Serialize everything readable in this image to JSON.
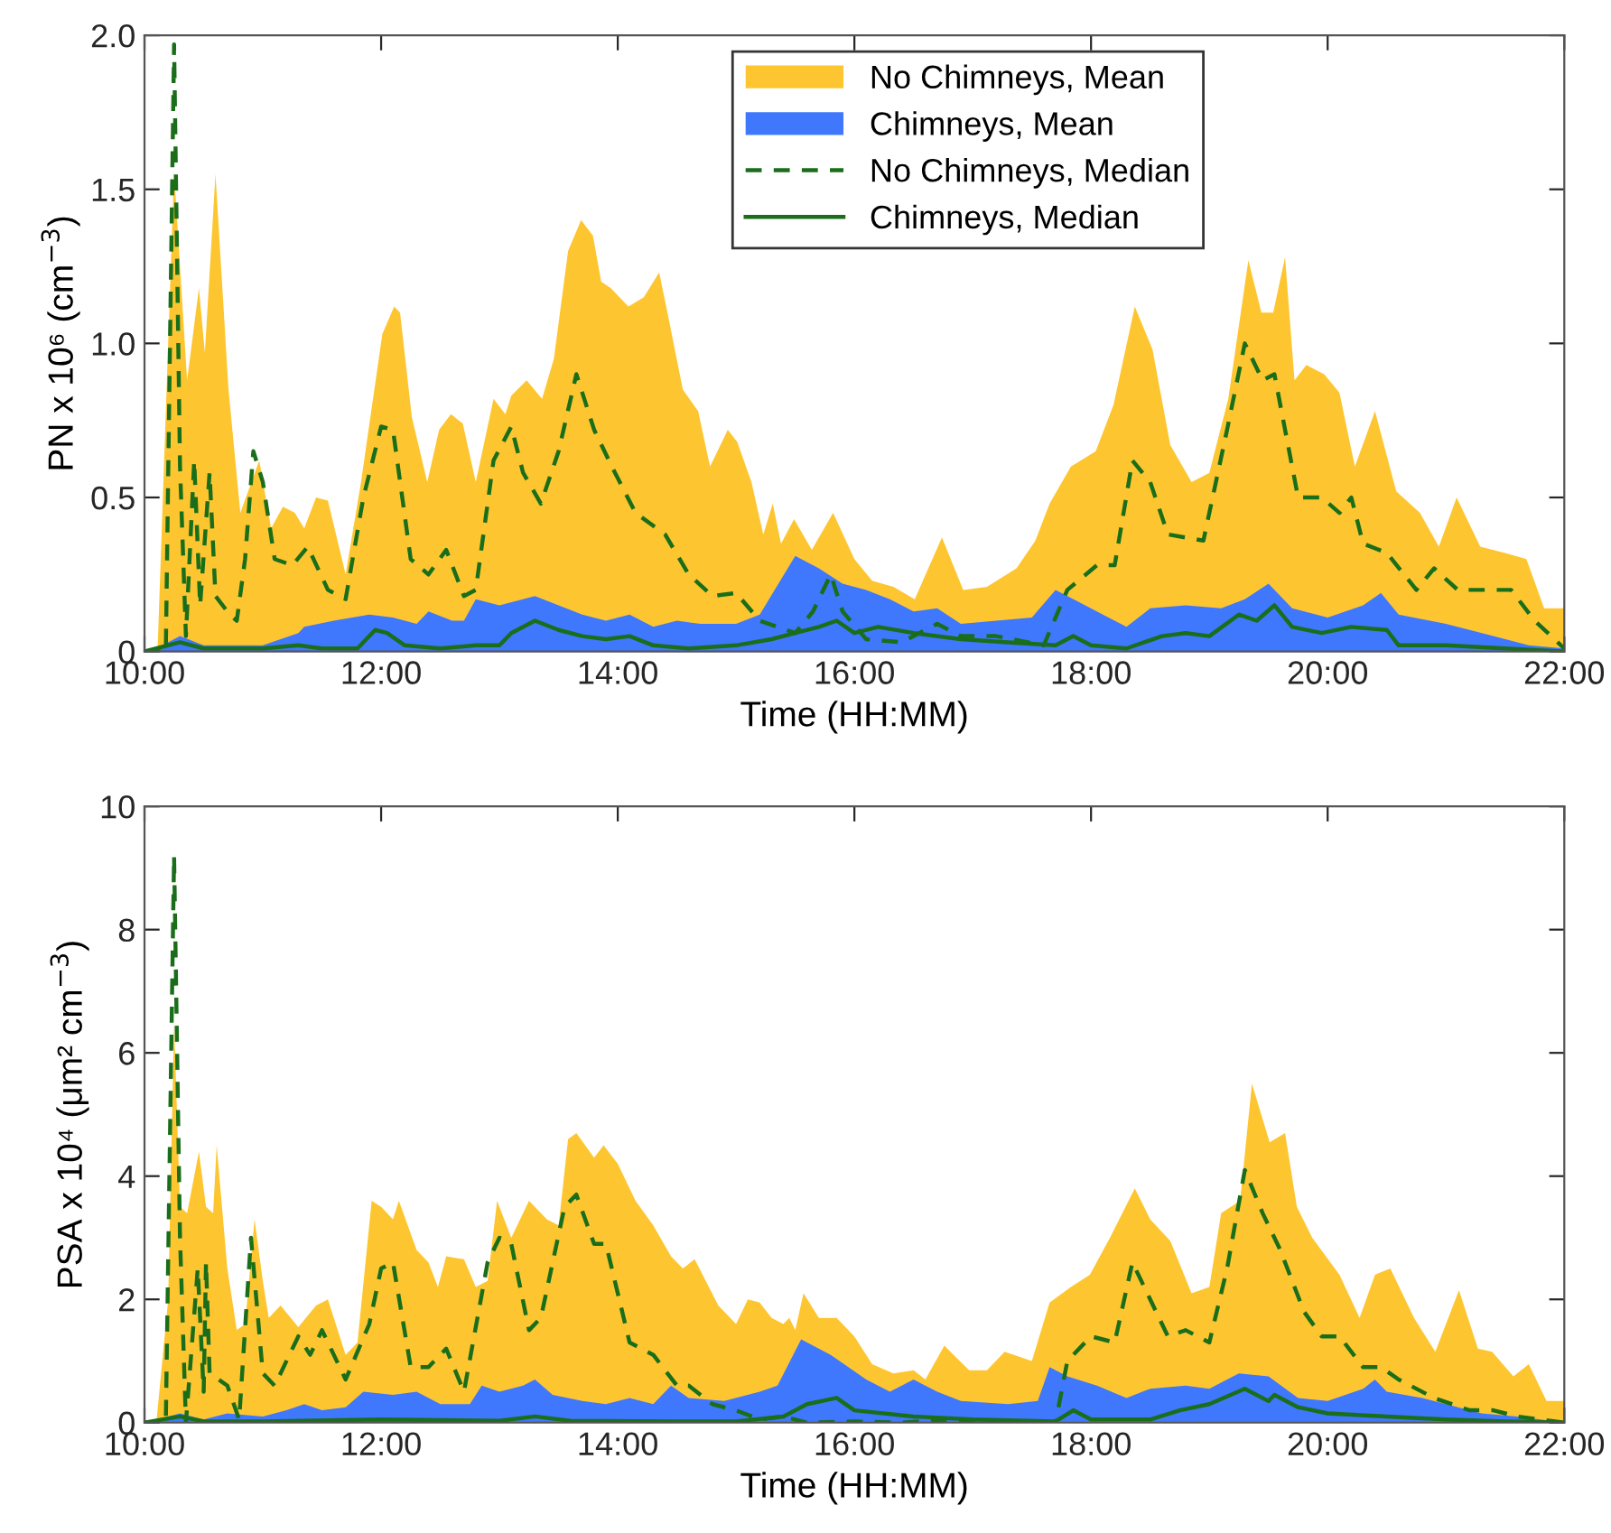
{
  "chart_data": [
    {
      "type": "area",
      "xlabel": "Time (HH:MM)",
      "ylabel": "PN x 10⁶ (cm$^{−3}$)",
      "xlim": [
        10,
        22
      ],
      "xticks": [
        {
          "value": 10,
          "label": "10:00"
        },
        {
          "value": 12,
          "label": "12:00"
        },
        {
          "value": 14,
          "label": "14:00"
        },
        {
          "value": 16,
          "label": "16:00"
        },
        {
          "value": 18,
          "label": "18:00"
        },
        {
          "value": 20,
          "label": "20:00"
        },
        {
          "value": 22,
          "label": "22:00"
        }
      ],
      "ylim": [
        0,
        2
      ],
      "yticks": [
        0,
        0.5,
        {
          "value": 1,
          "label": "1.0"
        },
        1.5,
        {
          "value": 2,
          "label": "2.0"
        }
      ],
      "grid": false,
      "legend": "top",
      "series": [
        {
          "name": "No Chimneys, Mean",
          "color": "#fdc631",
          "x": [
            10.0,
            10.11,
            10.2,
            10.25,
            10.36,
            10.46,
            10.51,
            10.6,
            10.71,
            10.81,
            10.97,
            11.07,
            11.17,
            11.27,
            11.35,
            11.45,
            11.55,
            11.7,
            11.83,
            12.01,
            12.11,
            12.16,
            12.26,
            12.39,
            12.49,
            12.59,
            12.69,
            12.8,
            12.95,
            13.05,
            13.1,
            13.23,
            13.36,
            13.46,
            13.58,
            13.69,
            13.79,
            13.86,
            13.94,
            14.09,
            14.22,
            14.35,
            14.42,
            14.55,
            14.68,
            14.78,
            14.93,
            15.01,
            15.13,
            15.23,
            15.31,
            15.38,
            15.49,
            15.64,
            15.82,
            16.0,
            16.15,
            16.33,
            16.51,
            16.74,
            16.92,
            17.12,
            17.37,
            17.53,
            17.65,
            17.83,
            18.04,
            18.19,
            18.37,
            18.52,
            18.67,
            18.85,
            19.0,
            19.16,
            19.33,
            19.44,
            19.54,
            19.64,
            19.72,
            19.82,
            19.97,
            20.1,
            20.23,
            20.4,
            20.58,
            20.78,
            20.94,
            21.09,
            21.29,
            21.5,
            21.68,
            21.83,
            22.0
          ],
          "values": [
            0,
            0,
            1.0,
            1.56,
            0.88,
            1.18,
            0.97,
            1.55,
            0.85,
            0.45,
            0.62,
            0.4,
            0.47,
            0.45,
            0.4,
            0.5,
            0.49,
            0.25,
            0.55,
            1.03,
            1.12,
            1.1,
            0.76,
            0.55,
            0.72,
            0.77,
            0.74,
            0.55,
            0.82,
            0.77,
            0.83,
            0.88,
            0.82,
            0.95,
            1.3,
            1.4,
            1.35,
            1.2,
            1.18,
            1.12,
            1.15,
            1.23,
            1.1,
            0.85,
            0.78,
            0.6,
            0.72,
            0.68,
            0.55,
            0.38,
            0.48,
            0.35,
            0.43,
            0.33,
            0.45,
            0.3,
            0.23,
            0.21,
            0.17,
            0.37,
            0.2,
            0.21,
            0.27,
            0.36,
            0.48,
            0.6,
            0.65,
            0.8,
            1.12,
            0.98,
            0.67,
            0.55,
            0.58,
            0.82,
            1.27,
            1.1,
            1.1,
            1.28,
            0.88,
            0.93,
            0.9,
            0.84,
            0.6,
            0.78,
            0.52,
            0.45,
            0.34,
            0.5,
            0.34,
            0.32,
            0.3,
            0.14,
            0.14
          ]
        },
        {
          "name": "Chimneys, Mean",
          "color": "#3f77fd",
          "x": [
            10.0,
            10.1,
            10.3,
            10.5,
            11.0,
            11.3,
            11.35,
            11.6,
            11.9,
            12.1,
            12.3,
            12.4,
            12.6,
            12.7,
            12.8,
            13.0,
            13.3,
            13.5,
            13.7,
            13.9,
            14.1,
            14.3,
            14.5,
            14.7,
            15.0,
            15.2,
            15.5,
            15.7,
            15.9,
            16.1,
            16.3,
            16.5,
            16.7,
            16.9,
            17.2,
            17.5,
            17.7,
            17.9,
            18.1,
            18.3,
            18.5,
            18.8,
            19.1,
            19.3,
            19.5,
            19.7,
            20.0,
            20.3,
            20.45,
            20.6,
            21.0,
            21.4,
            21.7,
            22.0
          ],
          "values": [
            0,
            0.01,
            0.05,
            0.02,
            0.02,
            0.06,
            0.08,
            0.1,
            0.12,
            0.11,
            0.09,
            0.13,
            0.1,
            0.1,
            0.17,
            0.15,
            0.18,
            0.15,
            0.12,
            0.1,
            0.12,
            0.08,
            0.1,
            0.09,
            0.09,
            0.12,
            0.31,
            0.27,
            0.22,
            0.2,
            0.17,
            0.13,
            0.14,
            0.09,
            0.1,
            0.11,
            0.2,
            0.16,
            0.12,
            0.08,
            0.14,
            0.15,
            0.14,
            0.17,
            0.22,
            0.14,
            0.11,
            0.15,
            0.19,
            0.12,
            0.09,
            0.05,
            0.02,
            0.01
          ]
        },
        {
          "name": "No Chimneys, Median",
          "type": "line",
          "line_style": "dashed",
          "color": "#1a6e1a",
          "x": [
            10.0,
            10.18,
            10.25,
            10.3,
            10.35,
            10.42,
            10.47,
            10.55,
            10.6,
            10.72,
            10.78,
            10.85,
            10.92,
            11.0,
            11.1,
            11.25,
            11.38,
            11.55,
            11.7,
            11.85,
            12.0,
            12.1,
            12.25,
            12.4,
            12.55,
            12.7,
            12.8,
            12.95,
            13.1,
            13.2,
            13.35,
            13.5,
            13.65,
            13.8,
            13.95,
            14.15,
            14.4,
            14.6,
            14.8,
            15.0,
            15.2,
            15.5,
            15.65,
            15.8,
            15.9,
            16.1,
            16.4,
            16.7,
            16.9,
            17.2,
            17.6,
            17.8,
            18.05,
            18.2,
            18.35,
            18.5,
            18.65,
            18.95,
            19.15,
            19.3,
            19.45,
            19.55,
            19.75,
            19.95,
            20.1,
            20.2,
            20.3,
            20.5,
            20.75,
            20.9,
            21.1,
            21.35,
            21.55,
            21.75,
            22.0
          ],
          "values": [
            0,
            0,
            1.97,
            0.6,
            0.05,
            0.62,
            0.15,
            0.58,
            0.18,
            0.12,
            0.1,
            0.3,
            0.65,
            0.55,
            0.3,
            0.28,
            0.34,
            0.2,
            0.17,
            0.5,
            0.73,
            0.72,
            0.3,
            0.25,
            0.33,
            0.18,
            0.2,
            0.62,
            0.73,
            0.58,
            0.48,
            0.65,
            0.9,
            0.72,
            0.6,
            0.45,
            0.38,
            0.25,
            0.18,
            0.19,
            0.1,
            0.06,
            0.13,
            0.25,
            0.13,
            0.04,
            0.03,
            0.09,
            0.05,
            0.05,
            0.02,
            0.2,
            0.28,
            0.28,
            0.62,
            0.55,
            0.38,
            0.36,
            0.72,
            1.0,
            0.88,
            0.9,
            0.5,
            0.5,
            0.45,
            0.5,
            0.35,
            0.32,
            0.2,
            0.27,
            0.2,
            0.2,
            0.2,
            0.1,
            0.01
          ]
        },
        {
          "name": "Chimneys, Median",
          "type": "line",
          "line_style": "solid",
          "color": "#1a6e1a",
          "x": [
            10.0,
            10.3,
            10.5,
            11.0,
            11.3,
            11.5,
            11.8,
            11.95,
            12.05,
            12.2,
            12.5,
            12.8,
            13.0,
            13.1,
            13.3,
            13.5,
            13.7,
            13.9,
            14.1,
            14.3,
            14.6,
            15.0,
            15.3,
            15.5,
            15.7,
            15.85,
            16.0,
            16.2,
            16.5,
            16.9,
            17.3,
            17.7,
            17.85,
            18.0,
            18.3,
            18.6,
            18.8,
            19.0,
            19.25,
            19.4,
            19.55,
            19.7,
            19.95,
            20.2,
            20.5,
            20.6,
            21.0,
            21.5,
            22.0
          ],
          "values": [
            0,
            0.03,
            0.01,
            0.01,
            0.02,
            0.01,
            0.01,
            0.07,
            0.06,
            0.02,
            0.01,
            0.02,
            0.02,
            0.06,
            0.1,
            0.07,
            0.05,
            0.04,
            0.05,
            0.02,
            0.01,
            0.02,
            0.04,
            0.06,
            0.08,
            0.1,
            0.06,
            0.08,
            0.06,
            0.04,
            0.03,
            0.02,
            0.05,
            0.02,
            0.01,
            0.05,
            0.06,
            0.05,
            0.12,
            0.1,
            0.15,
            0.08,
            0.06,
            0.08,
            0.07,
            0.02,
            0.02,
            0.01,
            0
          ]
        }
      ]
    },
    {
      "type": "area",
      "xlabel": "Time (HH:MM)",
      "ylabel": "PSA x 10⁴ (μm² cm$^{−3}$)",
      "xlim": [
        10,
        22
      ],
      "xticks": [
        {
          "value": 10,
          "label": "10:00"
        },
        {
          "value": 12,
          "label": "12:00"
        },
        {
          "value": 14,
          "label": "14:00"
        },
        {
          "value": 16,
          "label": "16:00"
        },
        {
          "value": 18,
          "label": "18:00"
        },
        {
          "value": 20,
          "label": "20:00"
        },
        {
          "value": 22,
          "label": "22:00"
        }
      ],
      "ylim": [
        0,
        10
      ],
      "yticks": [
        0,
        2,
        4,
        6,
        8,
        10
      ],
      "grid": false,
      "legend": false,
      "series": [
        {
          "color": "#fdc631",
          "x": [
            10.0,
            10.1,
            10.2,
            10.25,
            10.3,
            10.36,
            10.46,
            10.52,
            10.58,
            10.61,
            10.7,
            10.78,
            10.85,
            10.93,
            11.0,
            11.05,
            11.15,
            11.3,
            11.45,
            11.55,
            11.7,
            11.8,
            11.92,
            12.0,
            12.1,
            12.15,
            12.3,
            12.4,
            12.48,
            12.55,
            12.7,
            12.8,
            12.9,
            12.98,
            13.1,
            13.25,
            13.4,
            13.5,
            13.58,
            13.65,
            13.8,
            13.88,
            14.0,
            14.15,
            14.3,
            14.45,
            14.55,
            14.65,
            14.85,
            15.0,
            15.1,
            15.2,
            15.3,
            15.4,
            15.45,
            15.5,
            15.57,
            15.7,
            15.85,
            16.0,
            16.15,
            16.33,
            16.5,
            16.6,
            16.76,
            16.97,
            17.12,
            17.27,
            17.5,
            17.65,
            17.83,
            17.99,
            18.16,
            18.37,
            18.5,
            18.67,
            18.85,
            19.0,
            19.1,
            19.26,
            19.36,
            19.51,
            19.64,
            19.74,
            19.87,
            20.1,
            20.27,
            20.4,
            20.53,
            20.73,
            20.91,
            21.11,
            21.27,
            21.39,
            21.57,
            21.7,
            21.85,
            22.0
          ],
          "values": [
            0,
            0,
            2.0,
            6.5,
            3.5,
            3.4,
            4.4,
            3.5,
            3.4,
            4.5,
            2.5,
            1.5,
            1.6,
            3.3,
            2.3,
            1.7,
            1.9,
            1.55,
            1.9,
            2.0,
            1.1,
            1.3,
            3.6,
            3.5,
            3.3,
            3.6,
            2.8,
            2.6,
            2.2,
            2.7,
            2.65,
            2.2,
            2.3,
            3.6,
            3.0,
            3.6,
            3.3,
            3.2,
            4.6,
            4.7,
            4.3,
            4.5,
            4.2,
            3.6,
            3.2,
            2.7,
            2.5,
            2.65,
            1.9,
            1.6,
            2.0,
            1.95,
            1.7,
            1.6,
            1.7,
            1.5,
            2.1,
            1.7,
            1.7,
            1.4,
            0.95,
            0.8,
            0.85,
            0.7,
            1.25,
            0.85,
            0.85,
            1.15,
            1.0,
            1.95,
            2.2,
            2.4,
            3.0,
            3.8,
            3.3,
            2.95,
            2.1,
            2.2,
            3.4,
            3.6,
            5.5,
            4.55,
            4.7,
            3.5,
            3.0,
            2.4,
            1.7,
            2.4,
            2.5,
            1.7,
            1.15,
            2.15,
            1.2,
            1.15,
            0.75,
            0.95,
            0.35,
            0.35
          ]
        },
        {
          "color": "#3f77fd",
          "x": [
            10.0,
            10.2,
            10.3,
            10.5,
            10.7,
            11.0,
            11.2,
            11.35,
            11.5,
            11.7,
            11.85,
            12.1,
            12.3,
            12.5,
            12.75,
            12.85,
            13.0,
            13.2,
            13.3,
            13.45,
            13.7,
            13.9,
            14.1,
            14.3,
            14.45,
            14.6,
            14.9,
            15.2,
            15.35,
            15.55,
            15.8,
            16.1,
            16.3,
            16.5,
            16.7,
            16.9,
            17.3,
            17.55,
            17.65,
            17.8,
            18.05,
            18.3,
            18.5,
            18.8,
            19.0,
            19.25,
            19.5,
            19.75,
            20.0,
            20.3,
            20.4,
            20.5,
            20.8,
            21.0,
            21.3,
            21.6,
            21.8,
            22.0
          ],
          "values": [
            0,
            0.1,
            0.15,
            0.05,
            0.15,
            0.1,
            0.2,
            0.3,
            0.2,
            0.25,
            0.5,
            0.45,
            0.5,
            0.3,
            0.3,
            0.6,
            0.5,
            0.6,
            0.7,
            0.45,
            0.35,
            0.3,
            0.4,
            0.3,
            0.6,
            0.4,
            0.35,
            0.5,
            0.6,
            1.35,
            1.1,
            0.7,
            0.5,
            0.7,
            0.5,
            0.35,
            0.3,
            0.35,
            0.9,
            0.75,
            0.6,
            0.4,
            0.55,
            0.6,
            0.55,
            0.8,
            0.75,
            0.4,
            0.35,
            0.55,
            0.7,
            0.5,
            0.4,
            0.3,
            0.15,
            0.1,
            0.05,
            0
          ]
        },
        {
          "type": "line",
          "line_style": "dashed",
          "color": "#1a6e1a",
          "x": [
            10.0,
            10.18,
            10.25,
            10.3,
            10.35,
            10.45,
            10.5,
            10.52,
            10.55,
            10.7,
            10.8,
            10.9,
            11.0,
            11.1,
            11.3,
            11.4,
            11.5,
            11.7,
            11.9,
            12.0,
            12.1,
            12.25,
            12.4,
            12.55,
            12.7,
            12.9,
            13.0,
            13.1,
            13.25,
            13.35,
            13.55,
            13.65,
            13.8,
            13.9,
            14.1,
            14.3,
            14.5,
            14.6,
            14.8,
            15.0,
            15.2,
            15.4,
            15.6,
            16.0,
            16.4,
            16.8,
            17.2,
            17.7,
            17.8,
            18.0,
            18.2,
            18.35,
            18.5,
            18.65,
            18.8,
            19.0,
            19.15,
            19.3,
            19.45,
            19.6,
            19.8,
            19.95,
            20.1,
            20.3,
            20.45,
            20.6,
            20.9,
            21.2,
            21.4,
            21.6,
            22.0
          ],
          "values": [
            0,
            0,
            9.2,
            3.0,
            0.0,
            2.5,
            0.5,
            2.6,
            0.8,
            0.6,
            0.05,
            3.0,
            0.8,
            0.6,
            1.4,
            1.1,
            1.5,
            0.7,
            1.6,
            2.5,
            2.6,
            0.9,
            0.9,
            1.2,
            0.5,
            2.6,
            3.0,
            2.9,
            1.5,
            1.7,
            3.5,
            3.7,
            2.9,
            2.9,
            1.3,
            1.1,
            0.6,
            0.6,
            0.3,
            0.2,
            0.05,
            0.1,
            0.0,
            0.02,
            0.0,
            0.05,
            0.0,
            0.0,
            1.0,
            1.4,
            1.3,
            2.6,
            2.0,
            1.4,
            1.5,
            1.3,
            2.5,
            4.1,
            3.4,
            2.8,
            1.8,
            1.4,
            1.4,
            0.9,
            0.9,
            0.7,
            0.4,
            0.2,
            0.2,
            0.1,
            0.0
          ]
        },
        {
          "type": "line",
          "line_style": "solid",
          "color": "#1a6e1a",
          "x": [
            10.0,
            10.3,
            10.5,
            11.0,
            12.0,
            13.0,
            13.3,
            13.6,
            14.5,
            15.0,
            15.4,
            15.6,
            15.85,
            16.0,
            16.5,
            17.0,
            17.7,
            17.85,
            18.0,
            18.5,
            18.75,
            19.0,
            19.3,
            19.5,
            19.55,
            19.75,
            20.0,
            20.5,
            21.0,
            21.5,
            22.0
          ],
          "values": [
            0,
            0.1,
            0.02,
            0.02,
            0.05,
            0.03,
            0.1,
            0.03,
            0.02,
            0.02,
            0.1,
            0.3,
            0.4,
            0.2,
            0.1,
            0.05,
            0.02,
            0.2,
            0.05,
            0.05,
            0.2,
            0.3,
            0.55,
            0.35,
            0.45,
            0.25,
            0.15,
            0.1,
            0.05,
            0.02,
            0
          ]
        }
      ]
    }
  ]
}
